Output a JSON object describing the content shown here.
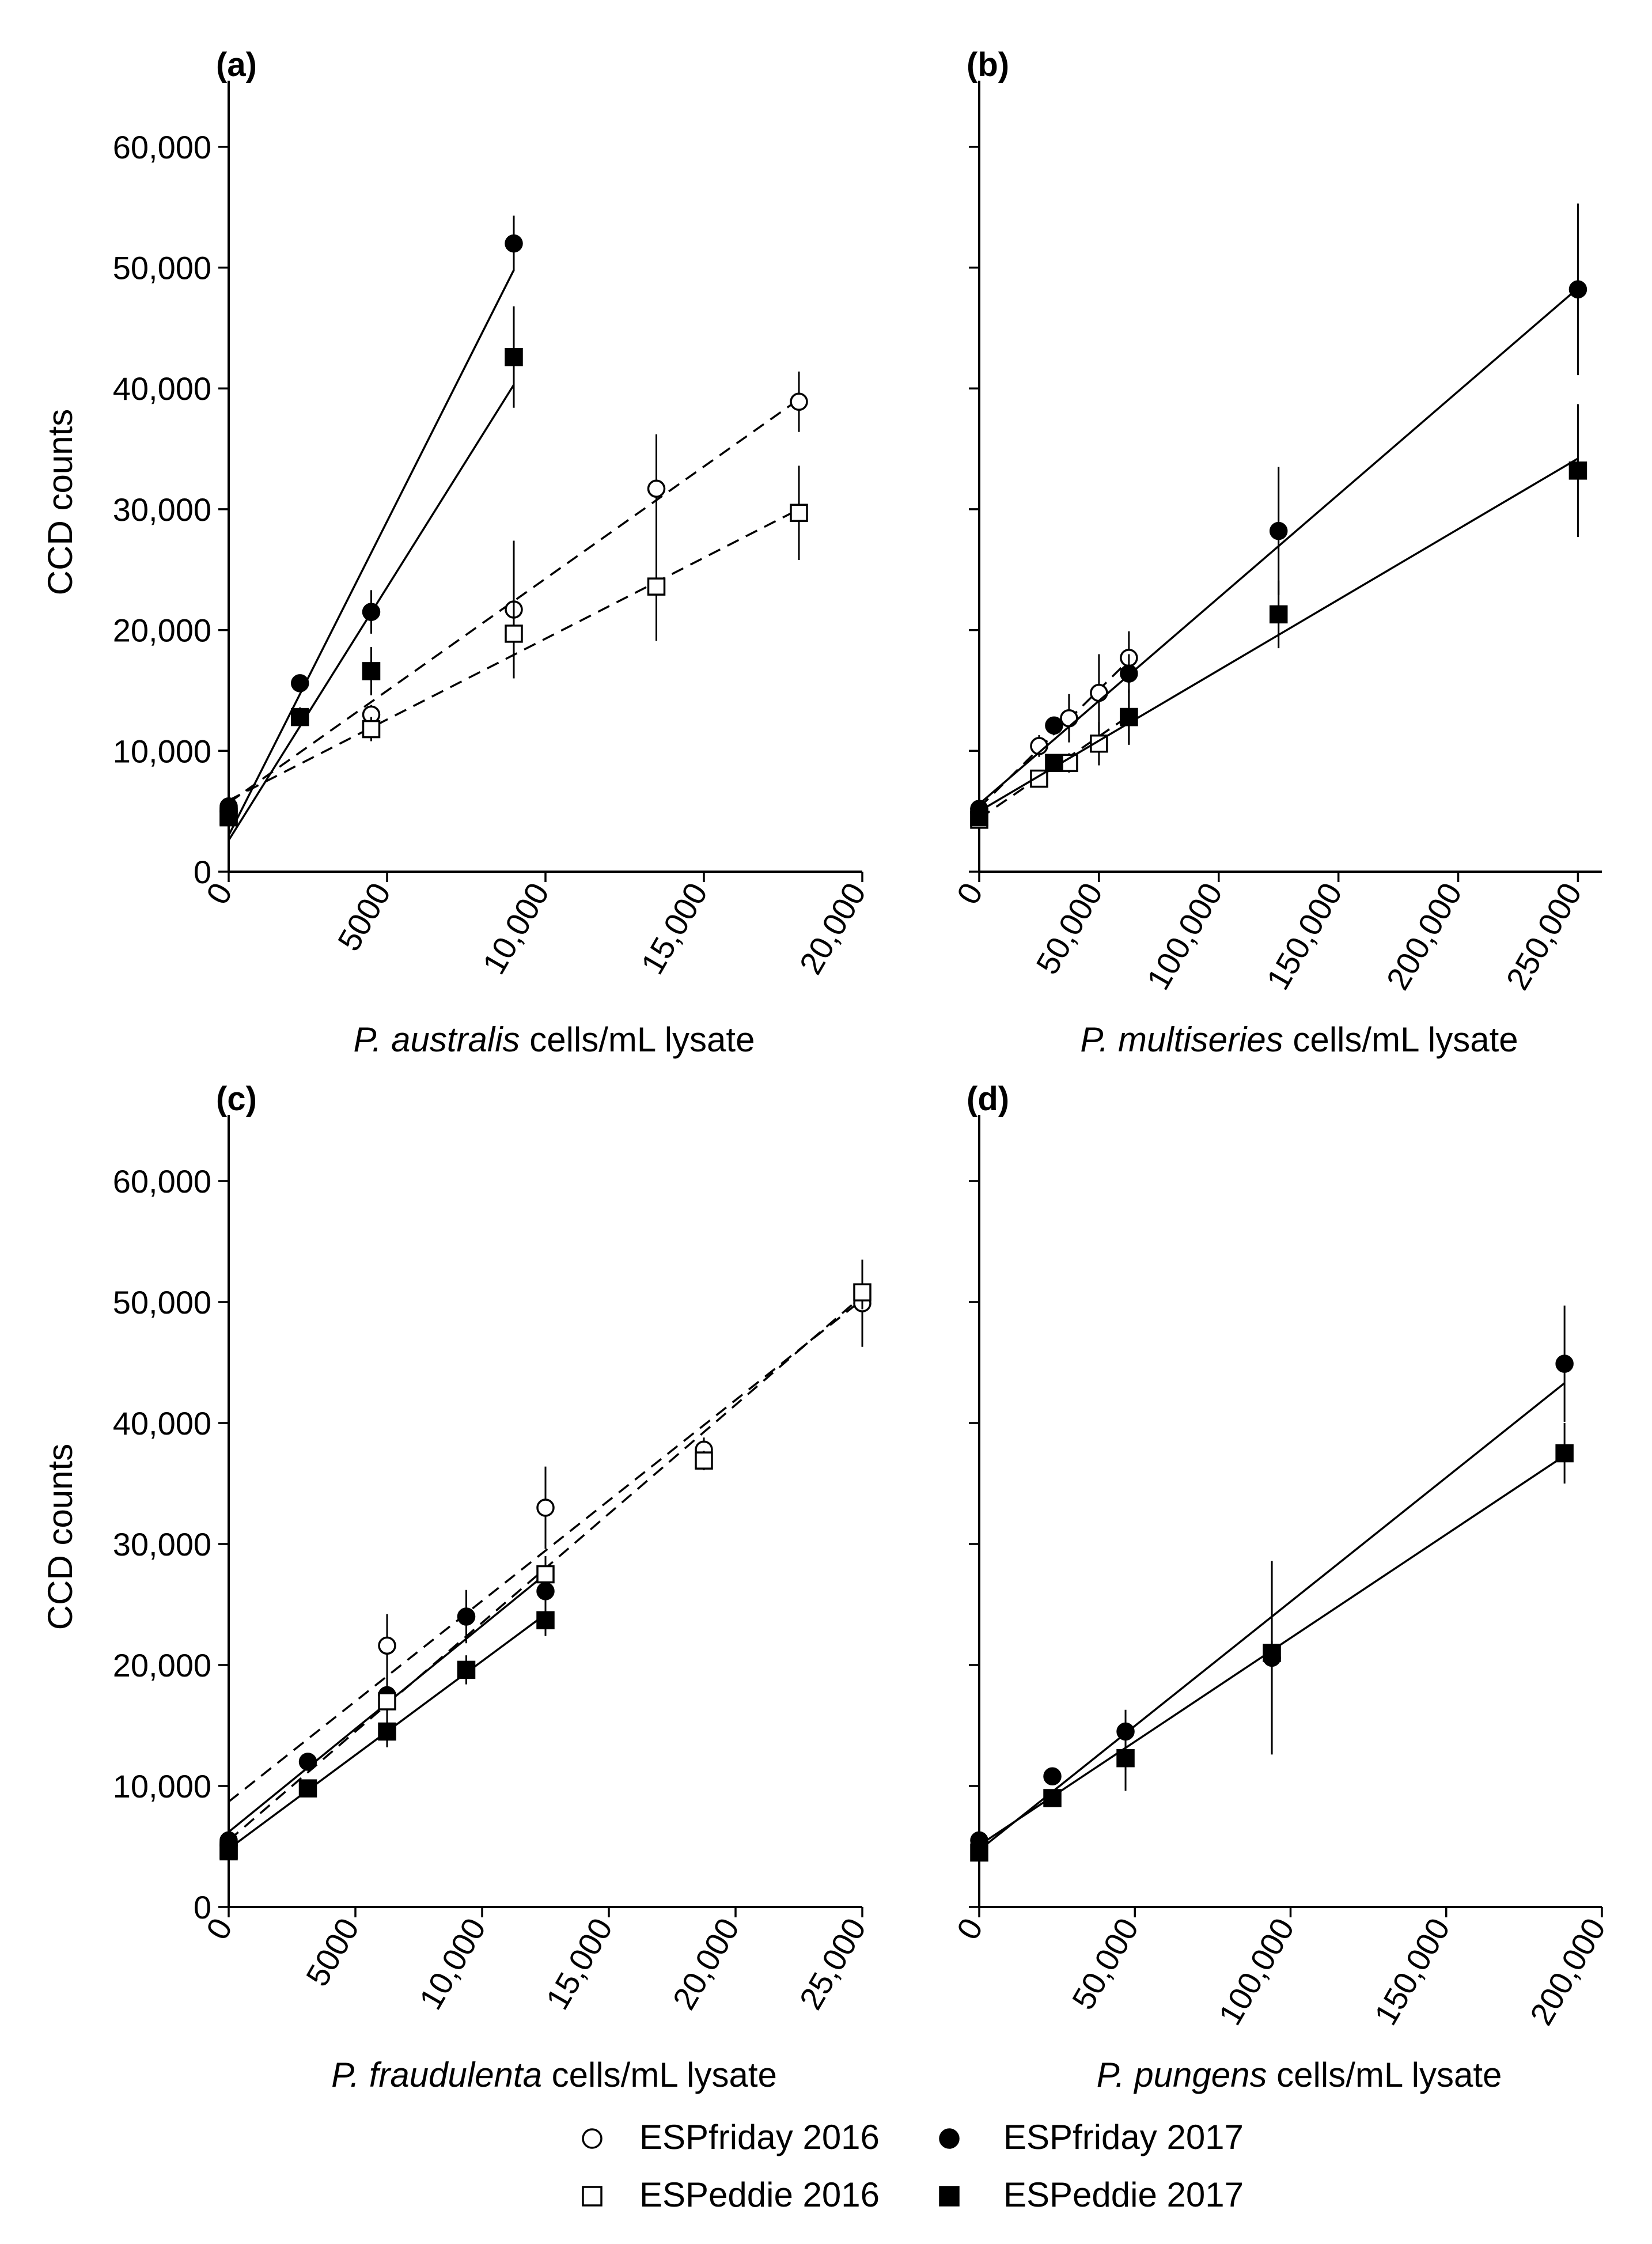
{
  "legend": {
    "items": [
      {
        "label": "ESPfriday 2016",
        "marker": "circle-open"
      },
      {
        "label": "ESPfriday 2017",
        "marker": "circle-filled"
      },
      {
        "label": "ESPeddie 2016",
        "marker": "square-open"
      },
      {
        "label": "ESPeddie 2017",
        "marker": "square-filled"
      }
    ]
  },
  "chart_data": [
    {
      "type": "scatter",
      "panel": "(a)",
      "xlabel_italic": "P. australis",
      "xlabel_rest": " cells/mL  lysate",
      "ylabel": "CCD counts",
      "xlim": [
        0,
        20000
      ],
      "ylim": [
        0,
        65000
      ],
      "xticks": [
        0,
        5000,
        10000,
        15000,
        20000
      ],
      "xtick_labels": [
        "0",
        "5000",
        "10,000",
        "15,000",
        "20,000"
      ],
      "yticks": [
        0,
        10000,
        20000,
        30000,
        40000,
        50000,
        60000
      ],
      "ytick_labels": [
        "0",
        "10,000",
        "20,000",
        "30,000",
        "40,000",
        "50,000",
        "60,000"
      ],
      "show_y_labels": true,
      "series": [
        {
          "name": "ESPfriday 2016",
          "marker": "circle-open",
          "line": "dashed",
          "x": [
            0,
            4500,
            9000,
            13500,
            18000
          ],
          "y": [
            5000,
            13000,
            21700,
            31700,
            38900
          ],
          "err": [
            0,
            800,
            5700,
            4500,
            2500
          ],
          "fit": [
            5700,
            39100
          ]
        },
        {
          "name": "ESPfriday 2017",
          "marker": "circle-filled",
          "line": "solid",
          "x": [
            0,
            2250,
            4500,
            9000
          ],
          "y": [
            5400,
            15600,
            21500,
            52000
          ],
          "err": [
            0,
            600,
            1800,
            2300
          ],
          "fit": [
            3000,
            49800
          ]
        },
        {
          "name": "ESPeddie 2016",
          "marker": "square-open",
          "line": "dashed",
          "x": [
            0,
            4500,
            9000,
            13500,
            18000
          ],
          "y": [
            4500,
            11800,
            19700,
            23600,
            29700
          ],
          "err": [
            0,
            1000,
            3300,
            4500,
            3900
          ],
          "fit": [
            5900,
            30000
          ]
        },
        {
          "name": "ESPeddie 2017",
          "marker": "square-filled",
          "line": "solid",
          "x": [
            0,
            2250,
            4500,
            9000
          ],
          "y": [
            4600,
            12800,
            16600,
            42600
          ],
          "err": [
            0,
            800,
            2000,
            4200
          ],
          "fit": [
            2600,
            40300
          ]
        }
      ]
    },
    {
      "type": "scatter",
      "panel": "(b)",
      "xlabel_italic": "P. multiseries",
      "xlabel_rest": " cells/mL  lysate",
      "ylabel": "",
      "xlim": [
        0,
        260000
      ],
      "ylim": [
        0,
        65000
      ],
      "xticks": [
        0,
        50000,
        100000,
        150000,
        200000,
        250000
      ],
      "xtick_labels": [
        "0",
        "50,000",
        "100,000",
        "150,000",
        "200,000",
        "250,000"
      ],
      "yticks": [
        0,
        10000,
        20000,
        30000,
        40000,
        50000,
        60000
      ],
      "ytick_labels": [],
      "show_y_labels": false,
      "series": [
        {
          "name": "ESPfriday 2016",
          "marker": "circle-open",
          "line": "dashed",
          "x": [
            0,
            25000,
            37500,
            50000,
            62500
          ],
          "y": [
            4900,
            10400,
            12700,
            14800,
            17700
          ],
          "err": [
            0,
            900,
            2000,
            3200,
            2200
          ],
          "fit": [
            5300,
            17500
          ]
        },
        {
          "name": "ESPfriday 2017",
          "marker": "circle-filled",
          "line": "solid",
          "x": [
            0,
            31250,
            62500,
            125000,
            250000
          ],
          "y": [
            5200,
            12100,
            16400,
            28200,
            48200
          ],
          "err": [
            0,
            700,
            1600,
            5300,
            7100
          ],
          "fit": [
            5600,
            48300
          ]
        },
        {
          "name": "ESPeddie 2016",
          "marker": "square-open",
          "line": "dashed",
          "x": [
            0,
            25000,
            37500,
            50000,
            62500
          ],
          "y": [
            4300,
            7700,
            9000,
            10600,
            12800
          ],
          "err": [
            0,
            700,
            800,
            1800,
            2300
          ],
          "fit": [
            4400,
            12900
          ]
        },
        {
          "name": "ESPeddie 2017",
          "marker": "square-filled",
          "line": "solid",
          "x": [
            0,
            31250,
            62500,
            125000,
            250000
          ],
          "y": [
            4500,
            9000,
            12800,
            21300,
            33200
          ],
          "err": [
            0,
            700,
            2200,
            2800,
            5500
          ],
          "fit": [
            5000,
            34200
          ]
        }
      ]
    },
    {
      "type": "scatter",
      "panel": "(c)",
      "xlabel_italic": "P. fraudulenta",
      "xlabel_rest": " cells/mL  lysate",
      "ylabel": "CCD counts",
      "xlim": [
        0,
        25000
      ],
      "ylim": [
        0,
        65000
      ],
      "xticks": [
        0,
        5000,
        10000,
        15000,
        20000,
        25000
      ],
      "xtick_labels": [
        "0",
        "5000",
        "10,000",
        "15,000",
        "20,000",
        "25,000"
      ],
      "yticks": [
        0,
        10000,
        20000,
        30000,
        40000,
        50000,
        60000
      ],
      "ytick_labels": [
        "0",
        "10,000",
        "20,000",
        "30,000",
        "40,000",
        "50,000",
        "60,000"
      ],
      "show_y_labels": true,
      "series": [
        {
          "name": "ESPfriday 2016",
          "marker": "circle-open",
          "line": "dashed",
          "x": [
            0,
            6250,
            12500,
            18750,
            25000
          ],
          "y": [
            5100,
            21600,
            33000,
            37800,
            49900
          ],
          "err": [
            0,
            2600,
            3400,
            1000,
            3600
          ],
          "fit": [
            8700,
            50200
          ]
        },
        {
          "name": "ESPfriday 2017",
          "marker": "circle-filled",
          "line": "solid",
          "x": [
            0,
            3125,
            6250,
            9375,
            12500
          ],
          "y": [
            5500,
            12000,
            17500,
            24000,
            26100
          ],
          "err": [
            0,
            600,
            1800,
            2200,
            1800
          ],
          "fit": [
            6200,
            27500
          ]
        },
        {
          "name": "ESPeddie 2016",
          "marker": "square-open",
          "line": "dashed",
          "x": [
            0,
            6250,
            12500,
            18750,
            25000
          ],
          "y": [
            4600,
            17000,
            27500,
            36900,
            50800
          ],
          "err": [
            0,
            2100,
            1500,
            800,
            1400
          ],
          "fit": [
            5500,
            50500
          ]
        },
        {
          "name": "ESPeddie 2017",
          "marker": "square-filled",
          "line": "solid",
          "x": [
            0,
            3125,
            6250,
            9375,
            12500
          ],
          "y": [
            4700,
            9800,
            14500,
            19600,
            23700
          ],
          "err": [
            0,
            600,
            1300,
            1200,
            1300
          ],
          "fit": [
            4800,
            24200
          ]
        }
      ]
    },
    {
      "type": "scatter",
      "panel": "(d)",
      "xlabel_italic": "P. pungens",
      "xlabel_rest": " cells/mL  lysate",
      "ylabel": "",
      "xlim": [
        0,
        200000
      ],
      "ylim": [
        0,
        65000
      ],
      "xticks": [
        0,
        50000,
        100000,
        150000,
        200000
      ],
      "xtick_labels": [
        "0",
        "50,000",
        "100,000",
        "150,000",
        "200,000"
      ],
      "yticks": [
        0,
        10000,
        20000,
        30000,
        40000,
        50000,
        60000
      ],
      "ytick_labels": [],
      "show_y_labels": false,
      "series": [
        {
          "name": "ESPfriday 2017",
          "marker": "circle-filled",
          "line": "solid",
          "x": [
            0,
            23500,
            47000,
            94000,
            188000
          ],
          "y": [
            5500,
            10800,
            14500,
            20600,
            44900
          ],
          "err": [
            0,
            700,
            1800,
            8000,
            4800
          ],
          "fit": [
            4700,
            43300
          ]
        },
        {
          "name": "ESPeddie 2017",
          "marker": "square-filled",
          "line": "solid",
          "x": [
            0,
            23500,
            47000,
            94000,
            188000
          ],
          "y": [
            4500,
            9000,
            12300,
            21000,
            37500
          ],
          "err": [
            0,
            600,
            2700,
            1000,
            2500
          ],
          "fit": [
            5100,
            37300
          ]
        }
      ]
    }
  ]
}
